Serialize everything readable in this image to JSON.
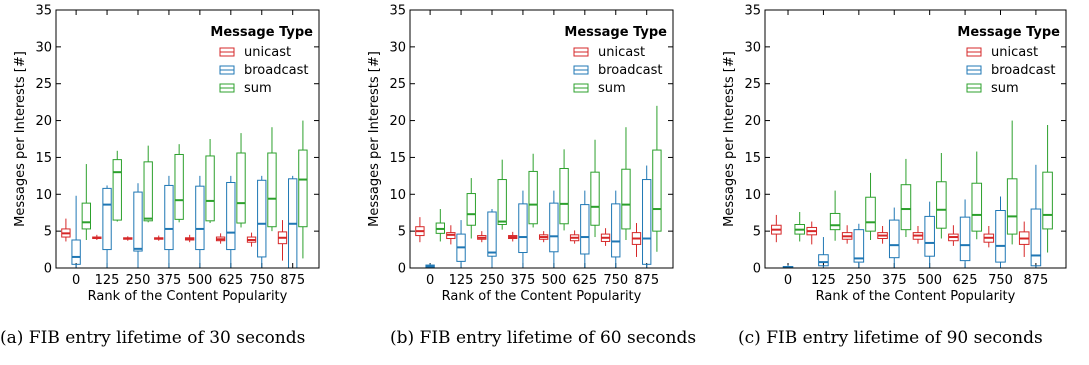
{
  "chart_data": [
    {
      "type": "box",
      "caption": "(a) FIB entry lifetime of 30 seconds",
      "xlabel": "Rank of the Content Popularity",
      "ylabel": "Messages per Interests [#]",
      "ylim": [
        0,
        35
      ],
      "yticks": [
        0,
        5,
        10,
        15,
        20,
        25,
        30,
        35
      ],
      "categories": [
        "0",
        "125",
        "250",
        "375",
        "500",
        "625",
        "750",
        "875"
      ],
      "legend": {
        "title": "Message Type",
        "position": "top-right"
      },
      "series": [
        {
          "name": "unicast",
          "color": "#d62728",
          "boxes": [
            {
              "whislo": 3.6,
              "q1": 4.2,
              "med": 4.7,
              "q3": 5.3,
              "whishi": 6.7
            },
            {
              "whislo": 3.8,
              "q1": 4.0,
              "med": 4.1,
              "q3": 4.2,
              "whishi": 4.5
            },
            {
              "whislo": 3.7,
              "q1": 3.9,
              "med": 4.0,
              "q3": 4.1,
              "whishi": 4.3
            },
            {
              "whislo": 3.7,
              "q1": 3.9,
              "med": 4.0,
              "q3": 4.1,
              "whishi": 4.4
            },
            {
              "whislo": 3.5,
              "q1": 3.8,
              "med": 4.0,
              "q3": 4.1,
              "whishi": 4.5
            },
            {
              "whislo": 3.3,
              "q1": 3.7,
              "med": 3.9,
              "q3": 4.2,
              "whishi": 4.7
            },
            {
              "whislo": 2.9,
              "q1": 3.5,
              "med": 3.8,
              "q3": 4.2,
              "whishi": 4.8
            },
            {
              "whislo": 1.0,
              "q1": 3.3,
              "med": 4.1,
              "q3": 4.9,
              "whishi": 6.5
            }
          ]
        },
        {
          "name": "broadcast",
          "color": "#1f77b4",
          "boxes": [
            {
              "whislo": 0.0,
              "q1": 0.5,
              "med": 1.5,
              "q3": 3.8,
              "whishi": 9.8
            },
            {
              "whislo": 0.0,
              "q1": 2.5,
              "med": 8.6,
              "q3": 10.8,
              "whishi": 11.2
            },
            {
              "whislo": 0.0,
              "q1": 2.3,
              "med": 2.6,
              "q3": 10.3,
              "whishi": 11.5
            },
            {
              "whislo": 0.0,
              "q1": 2.5,
              "med": 5.3,
              "q3": 11.2,
              "whishi": 12.5
            },
            {
              "whislo": 0.0,
              "q1": 2.5,
              "med": 5.3,
              "q3": 11.1,
              "whishi": 12.5
            },
            {
              "whislo": 0.0,
              "q1": 2.5,
              "med": 4.8,
              "q3": 11.6,
              "whishi": 12.5
            },
            {
              "whislo": 0.0,
              "q1": 1.5,
              "med": 6.0,
              "q3": 11.9,
              "whishi": 12.5
            },
            {
              "whislo": 0.0,
              "q1": 0.0,
              "med": 6.0,
              "q3": 12.1,
              "whishi": 12.5
            }
          ]
        },
        {
          "name": "sum",
          "color": "#2ca02c",
          "boxes": [
            {
              "whislo": 3.8,
              "q1": 5.3,
              "med": 6.2,
              "q3": 8.8,
              "whishi": 14.1
            },
            {
              "whislo": 6.3,
              "q1": 6.5,
              "med": 13.0,
              "q3": 14.7,
              "whishi": 15.9
            },
            {
              "whislo": 6.2,
              "q1": 6.4,
              "med": 6.7,
              "q3": 14.4,
              "whishi": 16.6
            },
            {
              "whislo": 6.2,
              "q1": 6.6,
              "med": 9.2,
              "q3": 15.4,
              "whishi": 16.8
            },
            {
              "whislo": 6.1,
              "q1": 6.4,
              "med": 9.1,
              "q3": 15.2,
              "whishi": 17.5
            },
            {
              "whislo": 5.5,
              "q1": 6.1,
              "med": 8.8,
              "q3": 15.6,
              "whishi": 18.3
            },
            {
              "whislo": 5.0,
              "q1": 5.6,
              "med": 9.4,
              "q3": 15.6,
              "whishi": 19.1
            },
            {
              "whislo": 1.3,
              "q1": 5.6,
              "med": 12.0,
              "q3": 16.0,
              "whishi": 20.0
            }
          ]
        }
      ]
    },
    {
      "type": "box",
      "caption": "(b) FIB entry lifetime of 60 seconds",
      "xlabel": "Rank of the Content Popularity",
      "ylabel": "Messages per Interests [#]",
      "ylim": [
        0,
        35
      ],
      "yticks": [
        0,
        5,
        10,
        15,
        20,
        25,
        30,
        35
      ],
      "categories": [
        "0",
        "125",
        "250",
        "375",
        "500",
        "625",
        "750",
        "875"
      ],
      "legend": {
        "title": "Message Type",
        "position": "top-right"
      },
      "series": [
        {
          "name": "unicast",
          "color": "#d62728",
          "boxes": [
            {
              "whislo": 3.5,
              "q1": 4.4,
              "med": 5.0,
              "q3": 5.6,
              "whishi": 6.9
            },
            {
              "whislo": 3.2,
              "q1": 4.0,
              "med": 4.5,
              "q3": 4.8,
              "whishi": 5.8
            },
            {
              "whislo": 3.5,
              "q1": 3.9,
              "med": 4.1,
              "q3": 4.4,
              "whishi": 5.0
            },
            {
              "whislo": 3.6,
              "q1": 4.0,
              "med": 4.2,
              "q3": 4.4,
              "whishi": 4.9
            },
            {
              "whislo": 3.5,
              "q1": 3.9,
              "med": 4.2,
              "q3": 4.5,
              "whishi": 5.0
            },
            {
              "whislo": 3.3,
              "q1": 3.7,
              "med": 4.1,
              "q3": 4.5,
              "whishi": 5.1
            },
            {
              "whislo": 3.0,
              "q1": 3.6,
              "med": 4.1,
              "q3": 4.6,
              "whishi": 5.4
            },
            {
              "whislo": 1.5,
              "q1": 3.2,
              "med": 4.0,
              "q3": 4.8,
              "whishi": 6.1
            }
          ]
        },
        {
          "name": "broadcast",
          "color": "#1f77b4",
          "boxes": [
            {
              "whislo": 0.0,
              "q1": 0.0,
              "med": 0.2,
              "q3": 0.4,
              "whishi": 0.6
            },
            {
              "whislo": 0.0,
              "q1": 0.9,
              "med": 2.8,
              "q3": 4.6,
              "whishi": 6.5
            },
            {
              "whislo": 0.0,
              "q1": 1.6,
              "med": 2.1,
              "q3": 7.6,
              "whishi": 8.0
            },
            {
              "whislo": 0.0,
              "q1": 2.1,
              "med": 4.2,
              "q3": 8.7,
              "whishi": 10.5
            },
            {
              "whislo": 0.0,
              "q1": 2.2,
              "med": 4.3,
              "q3": 8.8,
              "whishi": 10.5
            },
            {
              "whislo": 0.0,
              "q1": 1.9,
              "med": 4.2,
              "q3": 8.6,
              "whishi": 10.5
            },
            {
              "whislo": 0.0,
              "q1": 1.5,
              "med": 3.6,
              "q3": 8.7,
              "whishi": 10.5
            },
            {
              "whislo": 0.0,
              "q1": 0.5,
              "med": 4.0,
              "q3": 12.0,
              "whishi": 13.9
            }
          ]
        },
        {
          "name": "sum",
          "color": "#2ca02c",
          "boxes": [
            {
              "whislo": 3.6,
              "q1": 4.7,
              "med": 5.3,
              "q3": 6.1,
              "whishi": 8.0
            },
            {
              "whislo": 4.0,
              "q1": 5.8,
              "med": 7.3,
              "q3": 10.1,
              "whishi": 12.2
            },
            {
              "whislo": 5.2,
              "q1": 5.9,
              "med": 6.3,
              "q3": 12.0,
              "whishi": 14.7
            },
            {
              "whislo": 5.5,
              "q1": 6.0,
              "med": 8.6,
              "q3": 13.1,
              "whishi": 15.5
            },
            {
              "whislo": 5.1,
              "q1": 6.0,
              "med": 8.7,
              "q3": 13.5,
              "whishi": 16.1
            },
            {
              "whislo": 4.2,
              "q1": 5.8,
              "med": 8.3,
              "q3": 13.0,
              "whishi": 17.4
            },
            {
              "whislo": 3.8,
              "q1": 5.3,
              "med": 8.6,
              "q3": 13.4,
              "whishi": 19.1
            },
            {
              "whislo": 2.2,
              "q1": 5.0,
              "med": 8.0,
              "q3": 16.0,
              "whishi": 22.0
            }
          ]
        }
      ]
    },
    {
      "type": "box",
      "caption": "(c) FIB entry lifetime of 90 seconds",
      "xlabel": "Rank of the Content Popularity",
      "ylabel": "Messages per Interests [#]",
      "ylim": [
        0,
        35
      ],
      "yticks": [
        0,
        5,
        10,
        15,
        20,
        25,
        30,
        35
      ],
      "categories": [
        "0",
        "125",
        "250",
        "375",
        "500",
        "625",
        "750",
        "875"
      ],
      "legend": {
        "title": "Message Type",
        "position": "top-right"
      },
      "series": [
        {
          "name": "unicast",
          "color": "#d62728",
          "boxes": [
            {
              "whislo": 3.5,
              "q1": 4.6,
              "med": 5.2,
              "q3": 5.8,
              "whishi": 7.2
            },
            {
              "whislo": 3.2,
              "q1": 4.5,
              "med": 5.0,
              "q3": 5.5,
              "whishi": 6.3
            },
            {
              "whislo": 3.3,
              "q1": 3.9,
              "med": 4.3,
              "q3": 4.8,
              "whishi": 5.8
            },
            {
              "whislo": 3.3,
              "q1": 4.0,
              "med": 4.4,
              "q3": 4.8,
              "whishi": 5.7
            },
            {
              "whislo": 3.3,
              "q1": 3.9,
              "med": 4.4,
              "q3": 4.8,
              "whishi": 5.7
            },
            {
              "whislo": 3.0,
              "q1": 3.7,
              "med": 4.2,
              "q3": 4.6,
              "whishi": 5.8
            },
            {
              "whislo": 2.8,
              "q1": 3.5,
              "med": 4.1,
              "q3": 4.6,
              "whishi": 5.7
            },
            {
              "whislo": 1.5,
              "q1": 3.2,
              "med": 4.0,
              "q3": 4.9,
              "whishi": 6.3
            }
          ]
        },
        {
          "name": "broadcast",
          "color": "#1f77b4",
          "boxes": [
            {
              "whislo": 0.0,
              "q1": 0.0,
              "med": 0.1,
              "q3": 0.2,
              "whishi": 0.4
            },
            {
              "whislo": 0.0,
              "q1": 0.3,
              "med": 0.8,
              "q3": 1.8,
              "whishi": 4.2
            },
            {
              "whislo": 0.0,
              "q1": 0.8,
              "med": 1.3,
              "q3": 5.2,
              "whishi": 6.0
            },
            {
              "whislo": 0.0,
              "q1": 1.4,
              "med": 3.1,
              "q3": 6.5,
              "whishi": 8.2
            },
            {
              "whislo": 0.0,
              "q1": 1.6,
              "med": 3.4,
              "q3": 7.0,
              "whishi": 9.0
            },
            {
              "whislo": 0.0,
              "q1": 1.0,
              "med": 3.1,
              "q3": 6.9,
              "whishi": 9.3
            },
            {
              "whislo": 0.0,
              "q1": 0.8,
              "med": 3.0,
              "q3": 7.8,
              "whishi": 9.7
            },
            {
              "whislo": 0.0,
              "q1": 0.3,
              "med": 1.7,
              "q3": 8.0,
              "whishi": 14.0
            }
          ]
        },
        {
          "name": "sum",
          "color": "#2ca02c",
          "boxes": [
            {
              "whislo": 3.6,
              "q1": 4.6,
              "med": 5.2,
              "q3": 5.9,
              "whishi": 7.6
            },
            {
              "whislo": 3.7,
              "q1": 5.2,
              "med": 5.8,
              "q3": 7.4,
              "whishi": 10.5
            },
            {
              "whislo": 3.8,
              "q1": 5.0,
              "med": 6.2,
              "q3": 9.6,
              "whishi": 12.9
            },
            {
              "whislo": 4.2,
              "q1": 5.2,
              "med": 8.0,
              "q3": 11.3,
              "whishi": 14.8
            },
            {
              "whislo": 4.0,
              "q1": 5.4,
              "med": 7.9,
              "q3": 11.7,
              "whishi": 15.6
            },
            {
              "whislo": 3.9,
              "q1": 5.0,
              "med": 7.2,
              "q3": 11.5,
              "whishi": 15.8
            },
            {
              "whislo": 3.2,
              "q1": 4.6,
              "med": 7.0,
              "q3": 12.1,
              "whishi": 20.0
            },
            {
              "whislo": 2.1,
              "q1": 5.3,
              "med": 7.2,
              "q3": 13.0,
              "whishi": 19.4
            }
          ]
        }
      ]
    }
  ]
}
